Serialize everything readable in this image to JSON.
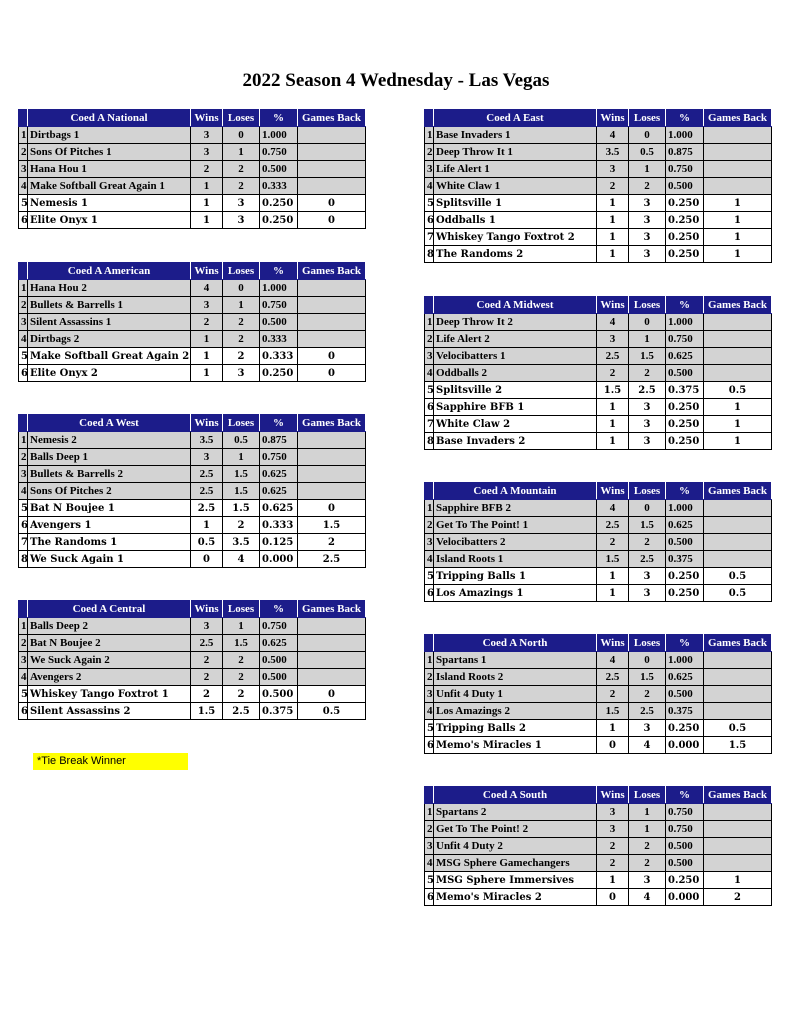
{
  "title": "2022 Season 4 Wednesday - Las Vegas",
  "columns": {
    "wins": "Wins",
    "loses": "Loses",
    "pct": "%",
    "games_back": "Games Back"
  },
  "tie_note": "*Tie Break Winner",
  "colors": {
    "header_bg": "#1c1c8a",
    "header_text": "#ffffff",
    "top_rows": "#d3d3d3",
    "tie_note_bg": "#ffff00"
  },
  "divisions": [
    {
      "name": "Coed A National",
      "rows": [
        [
          "1",
          "Dirtbags 1",
          "3",
          "0",
          "1.000",
          ""
        ],
        [
          "2",
          "Sons Of Pitches 1",
          "3",
          "1",
          "0.750",
          ""
        ],
        [
          "3",
          "Hana Hou 1",
          "2",
          "2",
          "0.500",
          ""
        ],
        [
          "4",
          "Make Softball Great Again 1",
          "1",
          "2",
          "0.333",
          ""
        ],
        [
          "5",
          "Nemesis 1",
          "1",
          "3",
          "0.250",
          "0"
        ],
        [
          "6",
          "Elite Onyx 1",
          "1",
          "3",
          "0.250",
          "0"
        ]
      ]
    },
    {
      "name": "Coed A American",
      "rows": [
        [
          "1",
          "Hana Hou 2",
          "4",
          "0",
          "1.000",
          ""
        ],
        [
          "2",
          "Bullets & Barrells 1",
          "3",
          "1",
          "0.750",
          ""
        ],
        [
          "3",
          "Silent Assassins 1",
          "2",
          "2",
          "0.500",
          ""
        ],
        [
          "4",
          "Dirtbags 2",
          "1",
          "2",
          "0.333",
          ""
        ],
        [
          "5",
          "Make Softball Great Again 2",
          "1",
          "2",
          "0.333",
          "0"
        ],
        [
          "6",
          "Elite Onyx 2",
          "1",
          "3",
          "0.250",
          "0"
        ]
      ]
    },
    {
      "name": "Coed A West",
      "rows": [
        [
          "1",
          "Nemesis 2",
          "3.5",
          "0.5",
          "0.875",
          ""
        ],
        [
          "2",
          "Balls Deep 1",
          "3",
          "1",
          "0.750",
          ""
        ],
        [
          "3",
          "Bullets & Barrells 2",
          "2.5",
          "1.5",
          "0.625",
          ""
        ],
        [
          "4",
          "Sons Of Pitches 2",
          "2.5",
          "1.5",
          "0.625",
          ""
        ],
        [
          "5",
          "Bat N Boujee 1",
          "2.5",
          "1.5",
          "0.625",
          "0"
        ],
        [
          "6",
          "Avengers 1",
          "1",
          "2",
          "0.333",
          "1.5"
        ],
        [
          "7",
          "The Randoms 1",
          "0.5",
          "3.5",
          "0.125",
          "2"
        ],
        [
          "8",
          "We Suck Again 1",
          "0",
          "4",
          "0.000",
          "2.5"
        ]
      ]
    },
    {
      "name": "Coed A Central",
      "rows": [
        [
          "1",
          "Balls Deep 2",
          "3",
          "1",
          "0.750",
          ""
        ],
        [
          "2",
          "Bat N Boujee 2",
          "2.5",
          "1.5",
          "0.625",
          ""
        ],
        [
          "3",
          "We Suck Again 2",
          "2",
          "2",
          "0.500",
          ""
        ],
        [
          "4",
          "Avengers 2",
          "2",
          "2",
          "0.500",
          ""
        ],
        [
          "5",
          "Whiskey Tango Foxtrot 1",
          "2",
          "2",
          "0.500",
          "0"
        ],
        [
          "6",
          "Silent Assassins 2",
          "1.5",
          "2.5",
          "0.375",
          "0.5"
        ]
      ]
    },
    {
      "name": "Coed A East",
      "rows": [
        [
          "1",
          "Base Invaders 1",
          "4",
          "0",
          "1.000",
          ""
        ],
        [
          "2",
          "Deep Throw It 1",
          "3.5",
          "0.5",
          "0.875",
          ""
        ],
        [
          "3",
          "Life Alert 1",
          "3",
          "1",
          "0.750",
          ""
        ],
        [
          "4",
          "White Claw 1",
          "2",
          "2",
          "0.500",
          ""
        ],
        [
          "5",
          "Splitsville 1",
          "1",
          "3",
          "0.250",
          "1"
        ],
        [
          "6",
          "Oddballs 1",
          "1",
          "3",
          "0.250",
          "1"
        ],
        [
          "7",
          "Whiskey Tango Foxtrot 2",
          "1",
          "3",
          "0.250",
          "1"
        ],
        [
          "8",
          "The Randoms 2",
          "1",
          "3",
          "0.250",
          "1"
        ]
      ]
    },
    {
      "name": "Coed A Midwest",
      "rows": [
        [
          "1",
          "Deep Throw It 2",
          "4",
          "0",
          "1.000",
          ""
        ],
        [
          "2",
          "Life Alert 2",
          "3",
          "1",
          "0.750",
          ""
        ],
        [
          "3",
          "Velocibatters 1",
          "2.5",
          "1.5",
          "0.625",
          ""
        ],
        [
          "4",
          "Oddballs 2",
          "2",
          "2",
          "0.500",
          ""
        ],
        [
          "5",
          "Splitsville 2",
          "1.5",
          "2.5",
          "0.375",
          "0.5"
        ],
        [
          "6",
          "Sapphire BFB 1",
          "1",
          "3",
          "0.250",
          "1"
        ],
        [
          "7",
          "White Claw 2",
          "1",
          "3",
          "0.250",
          "1"
        ],
        [
          "8",
          "Base Invaders 2",
          "1",
          "3",
          "0.250",
          "1"
        ]
      ]
    },
    {
      "name": "Coed A Mountain",
      "rows": [
        [
          "1",
          "Sapphire BFB 2",
          "4",
          "0",
          "1.000",
          ""
        ],
        [
          "2",
          "Get To The Point! 1",
          "2.5",
          "1.5",
          "0.625",
          ""
        ],
        [
          "3",
          "Velocibatters 2",
          "2",
          "2",
          "0.500",
          ""
        ],
        [
          "4",
          "Island Roots 1",
          "1.5",
          "2.5",
          "0.375",
          ""
        ],
        [
          "5",
          "Tripping Balls 1",
          "1",
          "3",
          "0.250",
          "0.5"
        ],
        [
          "6",
          "Los Amazings 1",
          "1",
          "3",
          "0.250",
          "0.5"
        ]
      ]
    },
    {
      "name": "Coed A North",
      "rows": [
        [
          "1",
          "Spartans 1",
          "4",
          "0",
          "1.000",
          ""
        ],
        [
          "2",
          "Island Roots 2",
          "2.5",
          "1.5",
          "0.625",
          ""
        ],
        [
          "3",
          "Unfit 4 Duty 1",
          "2",
          "2",
          "0.500",
          ""
        ],
        [
          "4",
          "Los Amazings 2",
          "1.5",
          "2.5",
          "0.375",
          ""
        ],
        [
          "5",
          "Tripping Balls 2",
          "1",
          "3",
          "0.250",
          "0.5"
        ],
        [
          "6",
          "Memo's Miracles 1",
          "0",
          "4",
          "0.000",
          "1.5"
        ]
      ]
    },
    {
      "name": "Coed A South",
      "rows": [
        [
          "1",
          "Spartans 2",
          "3",
          "1",
          "0.750",
          ""
        ],
        [
          "2",
          "Get To The Point! 2",
          "3",
          "1",
          "0.750",
          ""
        ],
        [
          "3",
          "Unfit 4 Duty 2",
          "2",
          "2",
          "0.500",
          ""
        ],
        [
          "4",
          "MSG Sphere Gamechangers",
          "2",
          "2",
          "0.500",
          ""
        ],
        [
          "5",
          "MSG Sphere Immersives",
          "1",
          "3",
          "0.250",
          "1"
        ],
        [
          "6",
          "Memo's Miracles 2",
          "0",
          "4",
          "0.000",
          "2"
        ]
      ]
    }
  ]
}
